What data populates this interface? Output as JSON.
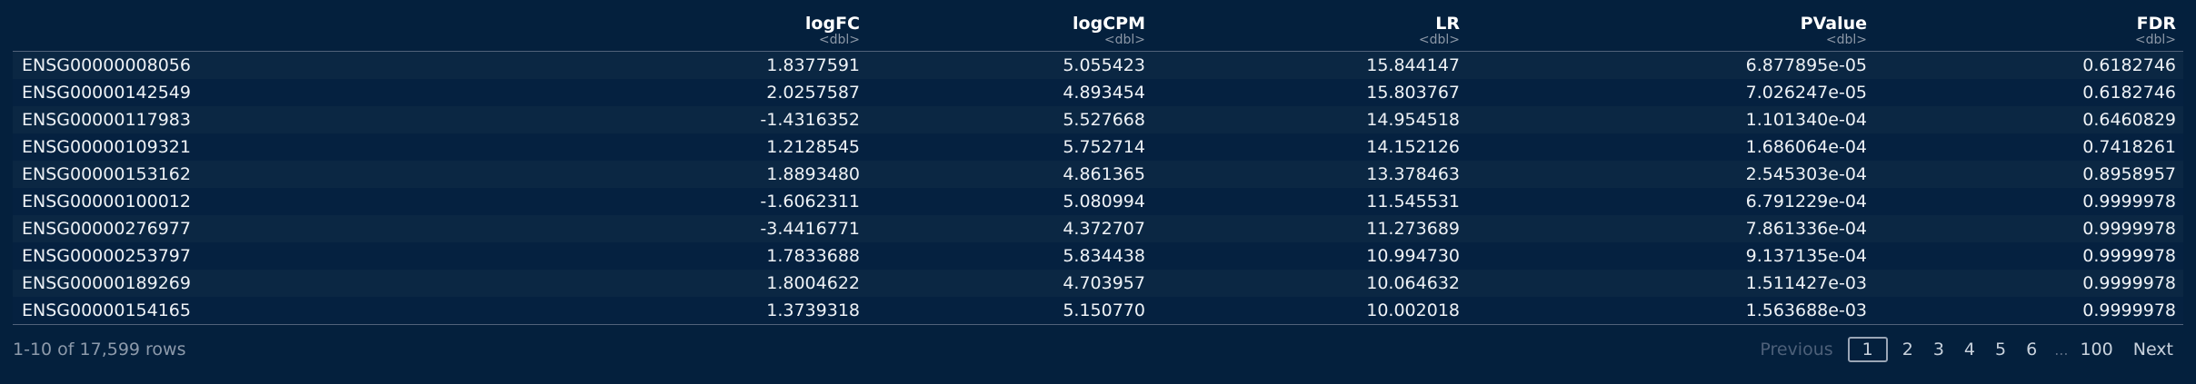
{
  "columns": [
    {
      "name": "",
      "type": ""
    },
    {
      "name": "logFC",
      "type": "<dbl>"
    },
    {
      "name": "logCPM",
      "type": "<dbl>"
    },
    {
      "name": "LR",
      "type": "<dbl>"
    },
    {
      "name": "PValue",
      "type": "<dbl>"
    },
    {
      "name": "FDR",
      "type": "<dbl>"
    }
  ],
  "rows": [
    [
      "ENSG00000008056",
      "1.8377591",
      "5.055423",
      "15.844147",
      "6.877895e-05",
      "0.6182746"
    ],
    [
      "ENSG00000142549",
      "2.0257587",
      "4.893454",
      "15.803767",
      "7.026247e-05",
      "0.6182746"
    ],
    [
      "ENSG00000117983",
      "-1.4316352",
      "5.527668",
      "14.954518",
      "1.101340e-04",
      "0.6460829"
    ],
    [
      "ENSG00000109321",
      "1.2128545",
      "5.752714",
      "14.152126",
      "1.686064e-04",
      "0.7418261"
    ],
    [
      "ENSG00000153162",
      "1.8893480",
      "4.861365",
      "13.378463",
      "2.545303e-04",
      "0.8958957"
    ],
    [
      "ENSG00000100012",
      "-1.6062311",
      "5.080994",
      "11.545531",
      "6.791229e-04",
      "0.9999978"
    ],
    [
      "ENSG00000276977",
      "-3.4416771",
      "4.372707",
      "11.273689",
      "7.861336e-04",
      "0.9999978"
    ],
    [
      "ENSG00000253797",
      "1.7833688",
      "5.834438",
      "10.994730",
      "9.137135e-04",
      "0.9999978"
    ],
    [
      "ENSG00000189269",
      "1.8004622",
      "4.703957",
      "10.064632",
      "1.511427e-03",
      "0.9999978"
    ],
    [
      "ENSG00000154165",
      "1.3739318",
      "5.150770",
      "10.002018",
      "1.563688e-03",
      "0.9999978"
    ]
  ],
  "footer": {
    "info": "1-10 of 17,599 rows",
    "previous": "Previous",
    "pages": [
      "1",
      "2",
      "3",
      "4",
      "5",
      "6"
    ],
    "current_page": "1",
    "ellipsis": "...",
    "last_page": "100",
    "next": "Next"
  },
  "colors": {
    "background": "#04203d",
    "row_odd": "#0b2743",
    "row_even": "#052140",
    "header_text": "#ffffff",
    "type_text": "#8c97a6"
  }
}
